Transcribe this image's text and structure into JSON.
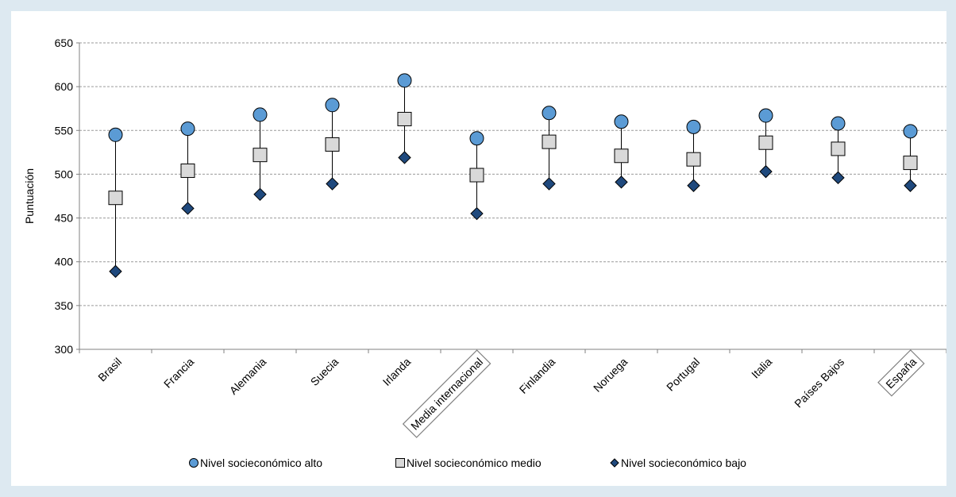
{
  "chart_data": {
    "type": "scatter",
    "title": "",
    "xlabel": "",
    "ylabel": "Puntuación",
    "ylim": [
      300,
      650
    ],
    "yticks": [
      300,
      350,
      400,
      450,
      500,
      550,
      600,
      650
    ],
    "grid": true,
    "legend_position": "bottom",
    "categories": [
      "Brasil",
      "Francia",
      "Alemania",
      "Suecia",
      "Irlanda",
      "Media internacional",
      "Finlandia",
      "Noruega",
      "Portugal",
      "Italia",
      "Países Bajos",
      "España"
    ],
    "boxed_categories": [
      "Media internacional",
      "España"
    ],
    "series": [
      {
        "name": "Nivel socieconómico alto",
        "marker": "circle",
        "color": "#5b9bd5",
        "values": [
          545,
          552,
          568,
          579,
          607,
          541,
          570,
          560,
          554,
          567,
          558,
          549
        ]
      },
      {
        "name": "Nivel socieconómico medio",
        "marker": "square",
        "color": "#d9d9d9",
        "values": [
          473,
          504,
          522,
          534,
          563,
          499,
          537,
          521,
          517,
          536,
          529,
          513
        ]
      },
      {
        "name": "Nivel socieconómico bajo",
        "marker": "diamond",
        "color": "#1f497d",
        "values": [
          389,
          461,
          477,
          489,
          519,
          455,
          489,
          491,
          487,
          503,
          496,
          487
        ]
      }
    ]
  }
}
